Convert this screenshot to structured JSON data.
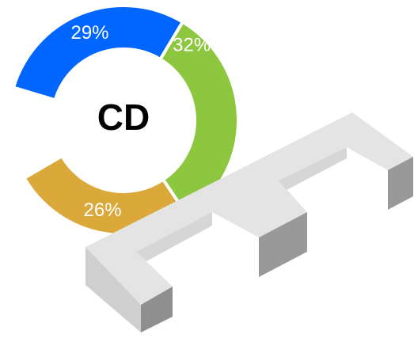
{
  "chart_data": {
    "type": "donut",
    "center_text": "CD",
    "values": [
      32,
      26,
      29
    ],
    "value_labels": [
      "32%",
      "26%",
      "29%"
    ],
    "colors": [
      "#8dc63f",
      "#dba83a",
      "#0066ff"
    ],
    "start_angle": 31,
    "skip_after": [
      0,
      13,
      0
    ]
  }
}
